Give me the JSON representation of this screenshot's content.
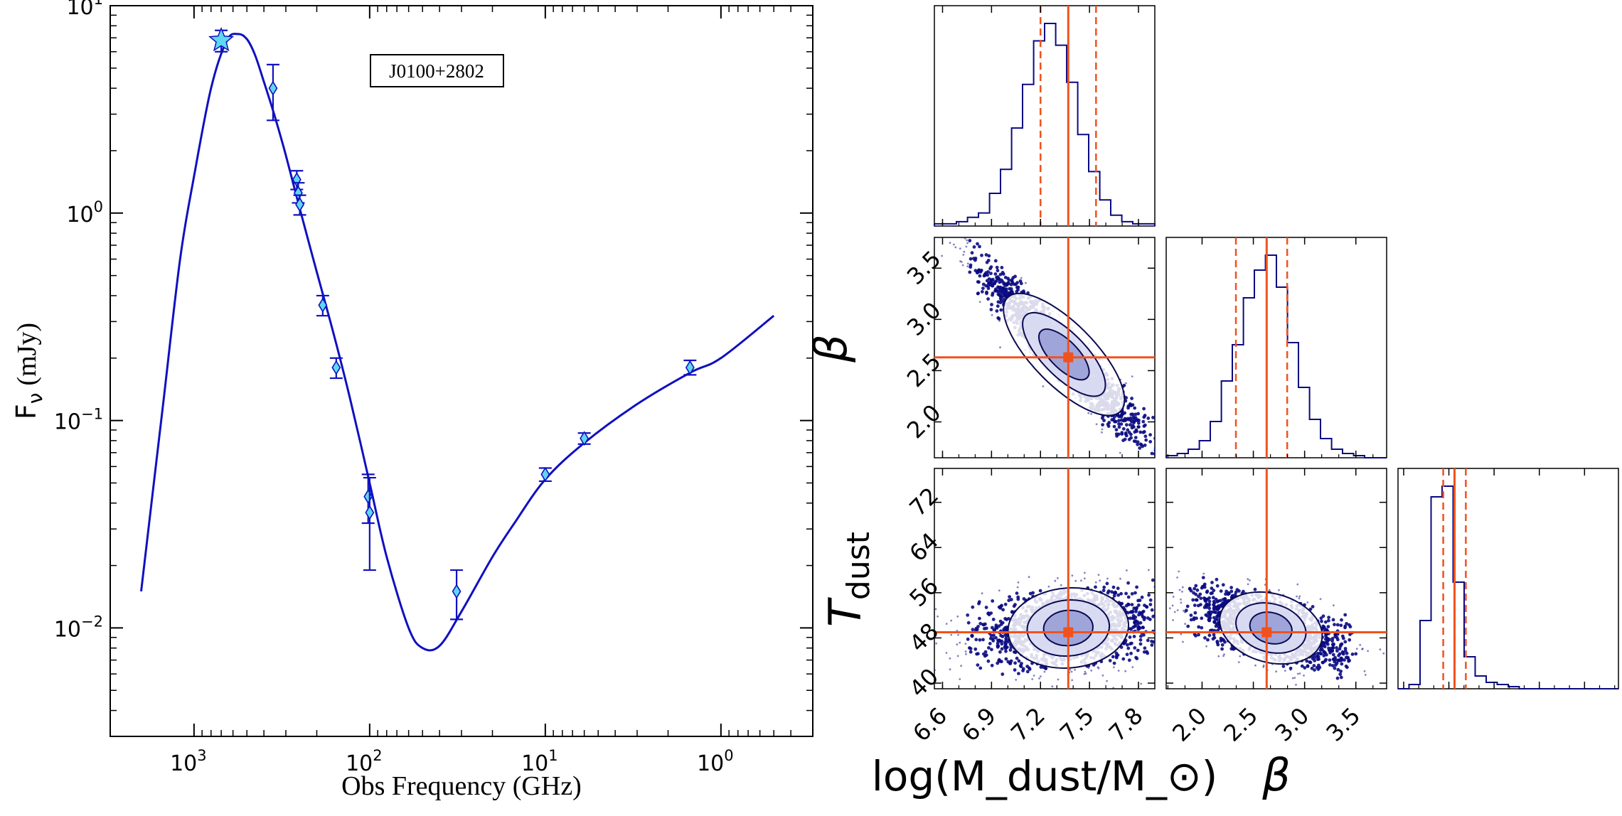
{
  "colors": {
    "curve": "#1010c0",
    "marker_fill": "#5fd7ef",
    "marker_edge": "#1010c0",
    "posterior": "#0a0a82",
    "median_line": "#f0521e",
    "axis": "#000000"
  },
  "chart_data": [
    {
      "type": "scatter",
      "name": "SED fit",
      "label_box": "J0100+2802",
      "ylabel": "F",
      "ylabel_sub": "ν",
      "ylabel_unit": "(mJy)",
      "xlabel": "Obs Frequency (GHz)",
      "x_scale": "log",
      "x_reversed": true,
      "xlim": [
        3000,
        0.3
      ],
      "y_scale": "log",
      "ylim": [
        0.003,
        10
      ],
      "x_ticks": [
        {
          "value": 1000,
          "base": "10",
          "exp": "3"
        },
        {
          "value": 100,
          "base": "10",
          "exp": "2"
        },
        {
          "value": 10,
          "base": "10",
          "exp": "1"
        },
        {
          "value": 1,
          "base": "10",
          "exp": "0"
        }
      ],
      "y_ticks": [
        {
          "value": 0.01,
          "base": "10",
          "exp": "−2"
        },
        {
          "value": 0.1,
          "base": "10",
          "exp": "−1"
        },
        {
          "value": 1,
          "base": "10",
          "exp": "0"
        },
        {
          "value": 10,
          "base": "10",
          "exp": "1"
        }
      ],
      "points": [
        {
          "x": 700,
          "y": 6.8,
          "ylo": 6.0,
          "yhi": 7.6,
          "marker": "star"
        },
        {
          "x": 355,
          "y": 4.0,
          "ylo": 2.8,
          "yhi": 5.2,
          "marker": "diamond"
        },
        {
          "x": 260,
          "y": 1.45,
          "ylo": 1.3,
          "yhi": 1.6,
          "marker": "diamond"
        },
        {
          "x": 255,
          "y": 1.25,
          "ylo": 1.12,
          "yhi": 1.4,
          "marker": "diamond"
        },
        {
          "x": 250,
          "y": 1.1,
          "ylo": 0.98,
          "yhi": 1.22,
          "marker": "diamond"
        },
        {
          "x": 185,
          "y": 0.36,
          "ylo": 0.32,
          "yhi": 0.4,
          "marker": "diamond"
        },
        {
          "x": 155,
          "y": 0.18,
          "ylo": 0.16,
          "yhi": 0.2,
          "marker": "diamond"
        },
        {
          "x": 102,
          "y": 0.043,
          "ylo": 0.032,
          "yhi": 0.055,
          "marker": "diamond"
        },
        {
          "x": 100,
          "y": 0.036,
          "ylo": 0.019,
          "yhi": 0.053,
          "marker": "diamond"
        },
        {
          "x": 32,
          "y": 0.015,
          "ylo": 0.011,
          "yhi": 0.019,
          "marker": "diamond"
        },
        {
          "x": 10,
          "y": 0.055,
          "ylo": 0.051,
          "yhi": 0.059,
          "marker": "diamond"
        },
        {
          "x": 6,
          "y": 0.082,
          "ylo": 0.077,
          "yhi": 0.087,
          "marker": "diamond"
        },
        {
          "x": 1.5,
          "y": 0.18,
          "ylo": 0.166,
          "yhi": 0.195,
          "marker": "diamond"
        }
      ],
      "model_curve": {
        "x": [
          2000,
          1500,
          1200,
          1000,
          800,
          650,
          560,
          500,
          450,
          400,
          350,
          300,
          250,
          200,
          160,
          130,
          100,
          80,
          60,
          50,
          40,
          30,
          20,
          15,
          10,
          6,
          3,
          1.5,
          1,
          0.5
        ],
        "y": [
          0.015,
          0.12,
          0.6,
          1.5,
          4.0,
          6.8,
          7.3,
          6.9,
          5.8,
          4.3,
          3.0,
          1.9,
          1.05,
          0.52,
          0.26,
          0.13,
          0.05,
          0.022,
          0.01,
          0.008,
          0.0082,
          0.012,
          0.022,
          0.032,
          0.052,
          0.078,
          0.12,
          0.17,
          0.2,
          0.32
        ]
      }
    },
    {
      "type": "histogram",
      "name": "corner plot",
      "parameters": [
        {
          "label": "log(M_dust/M_⊙)",
          "median": 7.37,
          "q16": 7.2,
          "q84": 7.54,
          "range": [
            6.55,
            7.9
          ],
          "ticks": [
            "6.6",
            "6.9",
            "7.2",
            "7.5",
            "7.8"
          ],
          "tick_values": [
            6.6,
            6.9,
            7.2,
            7.5,
            7.8
          ],
          "hist_edges": [
            6.55,
            6.618,
            6.685,
            6.753,
            6.82,
            6.888,
            6.955,
            7.023,
            7.09,
            7.158,
            7.225,
            7.293,
            7.36,
            7.428,
            7.495,
            7.563,
            7.63,
            7.698,
            7.765,
            7.833,
            7.9
          ],
          "hist_counts": [
            1,
            1,
            2,
            4,
            6,
            15,
            26,
            45,
            65,
            85,
            93,
            83,
            66,
            42,
            25,
            12,
            5,
            2,
            1,
            1
          ]
        },
        {
          "label": "β",
          "median": 2.63,
          "q16": 2.33,
          "q84": 2.83,
          "range": [
            1.65,
            3.8
          ],
          "ticks": [
            "2.0",
            "2.5",
            "3.0",
            "3.5"
          ],
          "tick_values": [
            2.0,
            2.5,
            3.0,
            3.5
          ],
          "hist_edges": [
            1.65,
            1.758,
            1.865,
            1.973,
            2.08,
            2.188,
            2.295,
            2.403,
            2.51,
            2.618,
            2.725,
            2.833,
            2.94,
            3.048,
            3.155,
            3.263,
            3.37,
            3.478,
            3.585,
            3.693,
            3.8
          ],
          "hist_counts": [
            1,
            2,
            4,
            8,
            17,
            36,
            53,
            75,
            88,
            95,
            80,
            54,
            33,
            18,
            9,
            4,
            2,
            1,
            0,
            0
          ]
        },
        {
          "label": "T",
          "label_sub": "dust",
          "median": 49,
          "q16": 47,
          "q84": 51,
          "range": [
            39,
            78
          ],
          "ticks": [
            "40",
            "48",
            "56",
            "64",
            "72"
          ],
          "tick_values": [
            40,
            48,
            56,
            64,
            72
          ],
          "hist_edges": [
            39,
            40.95,
            42.9,
            44.85,
            46.8,
            48.75,
            50.7,
            52.65,
            54.6,
            56.55,
            58.5,
            60.45,
            62.4,
            64.35,
            66.3,
            68.25,
            70.2,
            72.15,
            74.1,
            76.05,
            78
          ],
          "hist_counts": [
            0,
            2,
            32,
            90,
            95,
            50,
            15,
            6,
            3,
            2,
            1,
            0,
            0,
            0,
            0,
            0,
            0,
            0,
            0,
            0
          ]
        }
      ],
      "correlations": {
        "beta_vs_logM": -0.95,
        "T_vs_logM": 0.2,
        "T_vs_beta": -0.55
      }
    }
  ]
}
